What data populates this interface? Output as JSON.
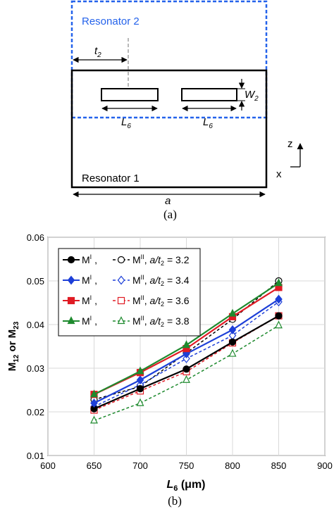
{
  "diagram": {
    "resonator2_label": "Resonator 2",
    "resonator1_label": "Resonator 1",
    "t_label": "t",
    "t_sub": "2",
    "w_label": "W",
    "w_sub": "2",
    "l_label": "L",
    "l_sub": "6",
    "a_label": "a",
    "axis_z": "z",
    "axis_x": "x",
    "caption": "(a)",
    "colors": {
      "resonator2": "#2563eb",
      "resonator1": "#000000"
    }
  },
  "plot": {
    "caption": "(b)",
    "ylabel_main": "M",
    "ylabel_sub1": "12",
    "ylabel_or": " or M",
    "ylabel_sub2": "23",
    "xlabel_main": "L",
    "xlabel_sub": "6",
    "xlabel_unit": " (μm)"
  },
  "chart_data": {
    "type": "line",
    "x": [
      650,
      700,
      750,
      800,
      850
    ],
    "xlim": [
      600,
      900
    ],
    "ylim": [
      0.01,
      0.06
    ],
    "xticks": [
      "600",
      "650",
      "700",
      "750",
      "800",
      "850",
      "900"
    ],
    "yticks": [
      "0.01",
      "0.02",
      "0.03",
      "0.04",
      "0.05",
      "0.06"
    ],
    "xticks_values": [
      600,
      650,
      700,
      750,
      800,
      850,
      900
    ],
    "yticks_values": [
      0.01,
      0.02,
      0.03,
      0.04,
      0.05,
      0.06
    ],
    "grid": true,
    "legend_position": "top-left",
    "legend": [
      {
        "m1": "M",
        "m1_sup": "I",
        "m2": "M",
        "m2_sup": "II",
        "ratio": "a/t",
        "ratio_sub": "2",
        "value": " = 3.2"
      },
      {
        "m1": "M",
        "m1_sup": "I",
        "m2": "M",
        "m2_sup": "II",
        "ratio": "a/t",
        "ratio_sub": "2",
        "value": " = 3.4"
      },
      {
        "m1": "M",
        "m1_sup": "I",
        "m2": "M",
        "m2_sup": "II",
        "ratio": "a/t",
        "ratio_sub": "2",
        "value": " = 3.6"
      },
      {
        "m1": "M",
        "m1_sup": "I",
        "m2": "M",
        "m2_sup": "II",
        "ratio": "a/t",
        "ratio_sub": "2",
        "value": " = 3.8"
      }
    ],
    "series": [
      {
        "color": "#000000",
        "marker": "circle",
        "filled": true,
        "dashed": false,
        "values": [
          0.0207,
          0.0253,
          0.0298,
          0.036,
          0.042
        ]
      },
      {
        "color": "#000000",
        "marker": "circle",
        "filled": false,
        "dashed": true,
        "values": [
          0.0228,
          0.0258,
          0.0335,
          0.0412,
          0.05
        ]
      },
      {
        "color": "#1d3fd8",
        "marker": "diamond",
        "filled": true,
        "dashed": false,
        "values": [
          0.022,
          0.0273,
          0.0333,
          0.0388,
          0.0458
        ]
      },
      {
        "color": "#1d3fd8",
        "marker": "diamond",
        "filled": false,
        "dashed": true,
        "values": [
          0.0212,
          0.0262,
          0.0322,
          0.0375,
          0.0452
        ]
      },
      {
        "color": "#e01b24",
        "marker": "square",
        "filled": true,
        "dashed": false,
        "values": [
          0.024,
          0.029,
          0.0345,
          0.0418,
          0.0485
        ]
      },
      {
        "color": "#e01b24",
        "marker": "square",
        "filled": false,
        "dashed": true,
        "values": [
          0.0204,
          0.0248,
          0.0292,
          0.0358,
          0.042
        ]
      },
      {
        "color": "#1e8a2e",
        "marker": "triangle",
        "filled": true,
        "dashed": false,
        "values": [
          0.024,
          0.0293,
          0.0353,
          0.0425,
          0.0495
        ]
      },
      {
        "color": "#1e8a2e",
        "marker": "triangle",
        "filled": false,
        "dashed": true,
        "values": [
          0.018,
          0.022,
          0.0273,
          0.0333,
          0.0398
        ]
      }
    ]
  }
}
